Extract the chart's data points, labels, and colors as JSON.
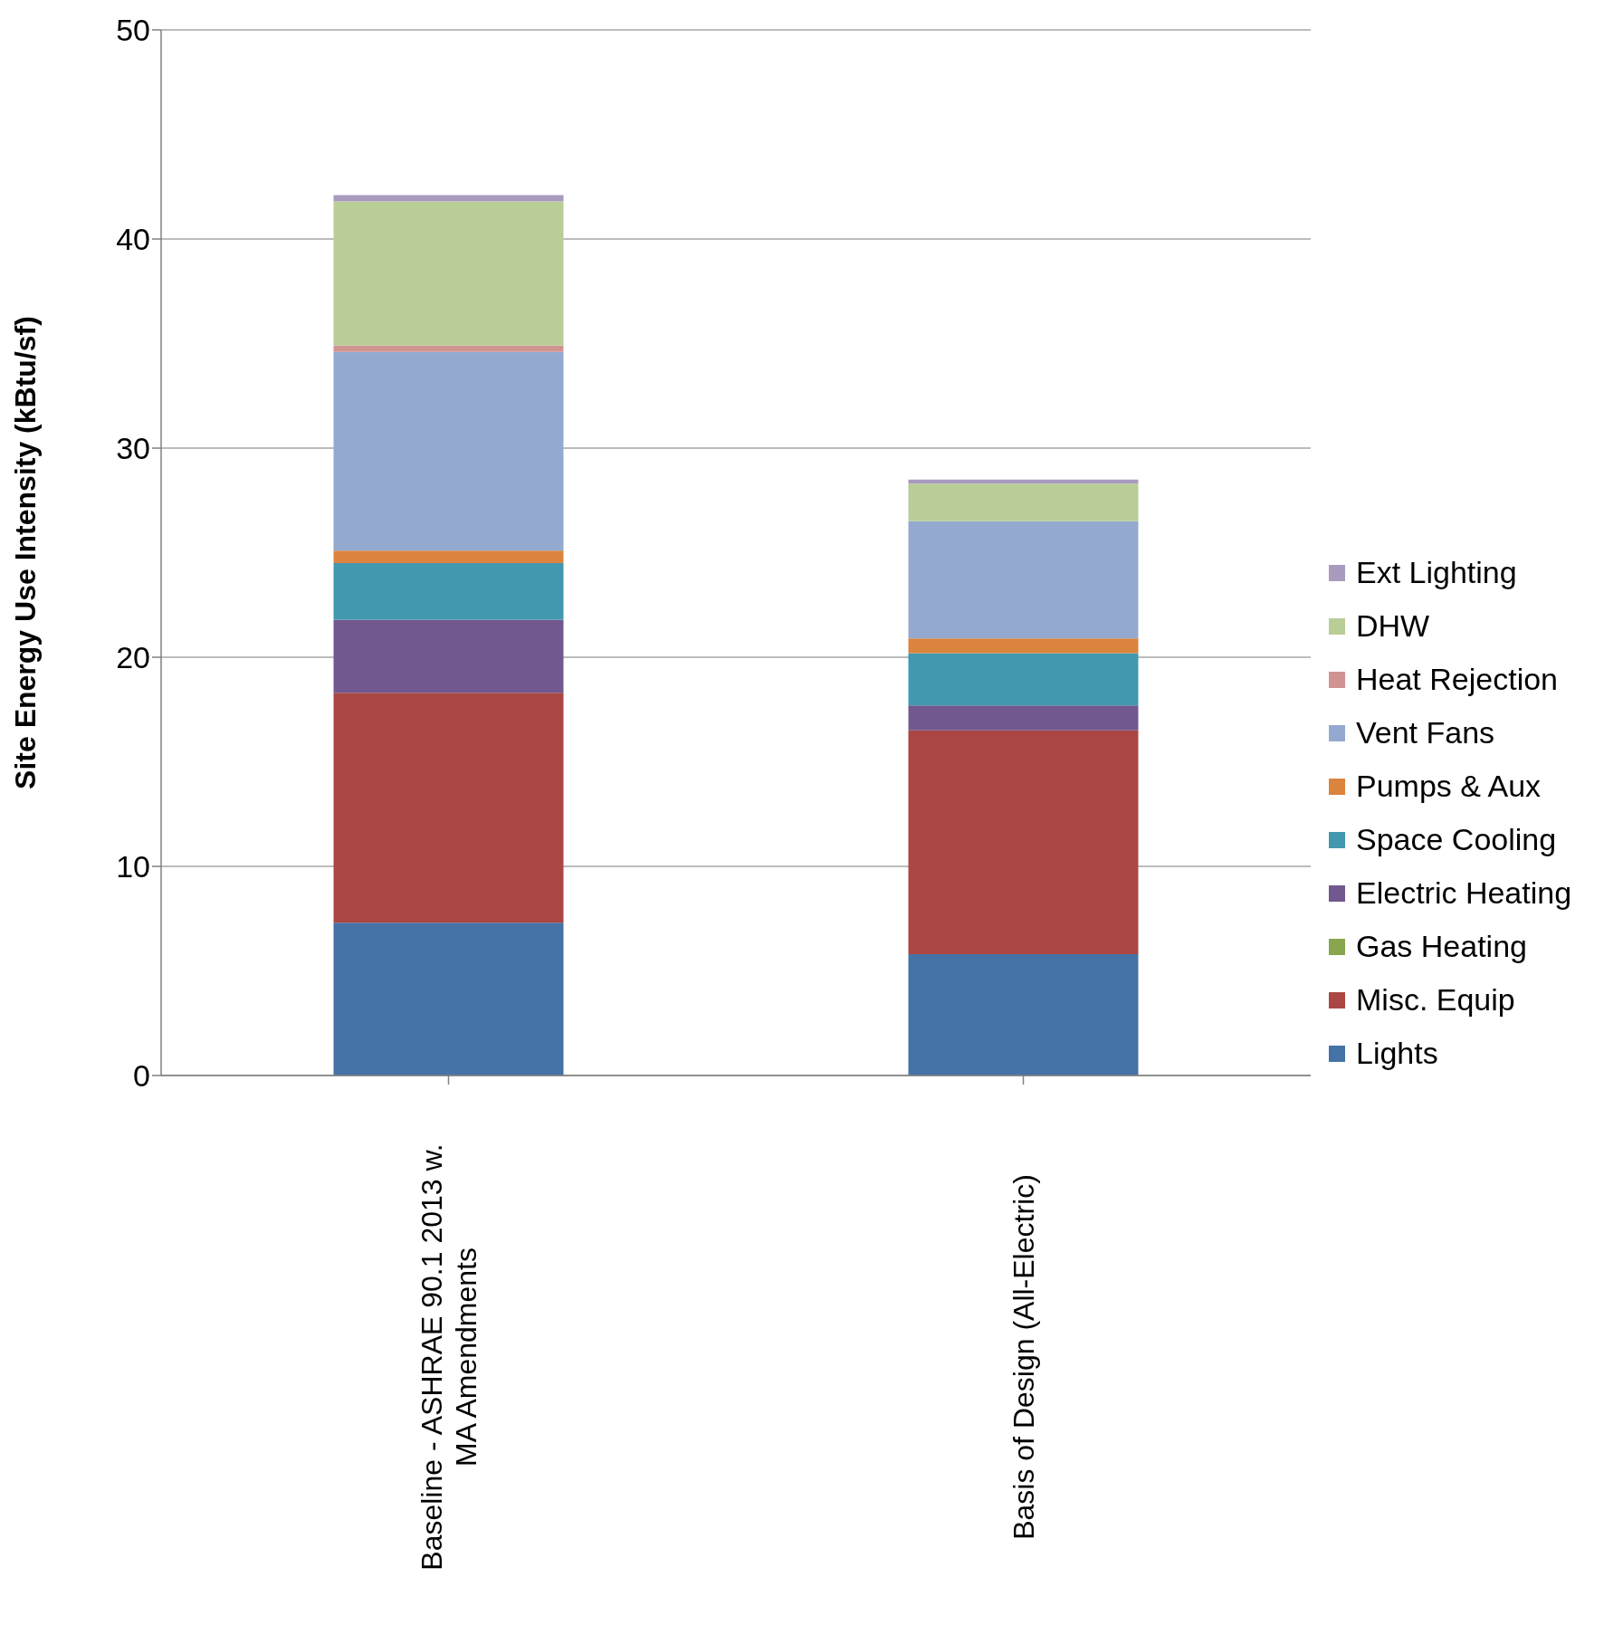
{
  "chart_data": {
    "type": "bar",
    "stacked": true,
    "ylabel": "Site Energy Use Intensity  (kBtu/sf)",
    "categories": [
      "Baseline - ASHRAE 90.1 2013 w. MA Amendments",
      "Basis of Design (All-Electric)"
    ],
    "series": [
      {
        "name": "Lights",
        "color": "#4572a7",
        "values": [
          7.3,
          5.8
        ]
      },
      {
        "name": "Misc. Equip",
        "color": "#aa4643",
        "values": [
          11.0,
          10.7
        ]
      },
      {
        "name": "Gas Heating",
        "color": "#89a54e",
        "values": [
          0,
          0
        ]
      },
      {
        "name": "Electric Heating",
        "color": "#71588f",
        "values": [
          3.5,
          1.2
        ]
      },
      {
        "name": "Space Cooling",
        "color": "#4198af",
        "values": [
          2.7,
          2.5
        ]
      },
      {
        "name": "Pumps & Aux",
        "color": "#db843d",
        "values": [
          0.6,
          0.7
        ]
      },
      {
        "name": "Vent Fans",
        "color": "#93a9cf",
        "values": [
          9.5,
          5.6
        ]
      },
      {
        "name": "Heat Rejection",
        "color": "#d19392",
        "values": [
          0.3,
          0
        ]
      },
      {
        "name": "DHW",
        "color": "#b9cd96",
        "values": [
          6.9,
          1.8
        ]
      },
      {
        "name": "Ext Lighting",
        "color": "#a99bbd",
        "values": [
          0.3,
          0.2
        ]
      }
    ],
    "ylim": [
      0,
      50
    ],
    "yticks": [
      0,
      10,
      20,
      30,
      40,
      50
    ],
    "grid": "y",
    "legend": "right"
  }
}
